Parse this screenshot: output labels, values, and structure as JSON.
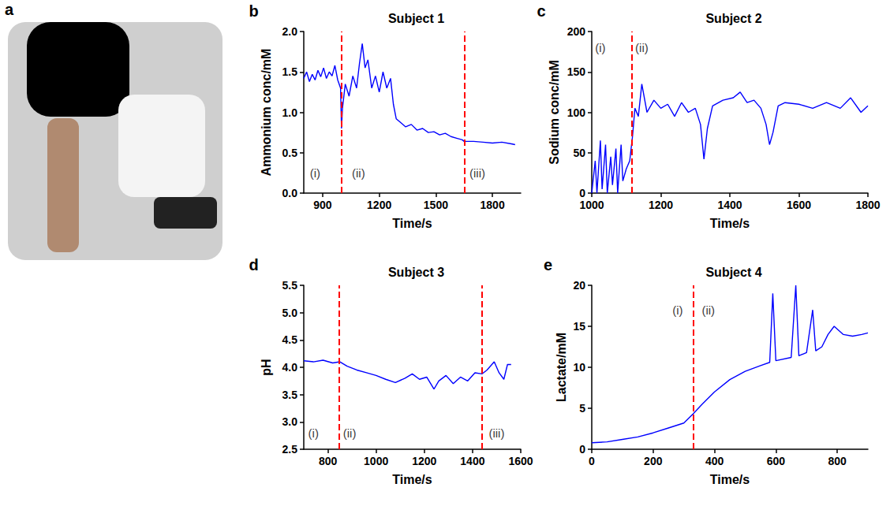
{
  "photo": {
    "panel": "a"
  },
  "chart_data": [
    {
      "type": "line",
      "panel": "b",
      "title": "Subject 1",
      "x_label": "Time/s",
      "y_label": "Ammonium conc/mM",
      "xlim": [
        800,
        1950
      ],
      "xticks": [
        900,
        1200,
        1500,
        1800
      ],
      "ylim": [
        0,
        2.0
      ],
      "yticks": [
        {
          "value": 0,
          "label": "0.0"
        },
        0.5,
        {
          "value": 1,
          "label": "1.0"
        },
        1.5,
        {
          "value": 2,
          "label": "2.0"
        }
      ],
      "grid": false,
      "color": "#0000ff",
      "x": [
        800,
        815,
        830,
        845,
        860,
        875,
        890,
        905,
        920,
        935,
        950,
        965,
        980,
        995,
        1000,
        1005,
        1020,
        1040,
        1060,
        1080,
        1095,
        1110,
        1125,
        1140,
        1160,
        1180,
        1200,
        1220,
        1240,
        1260,
        1275,
        1290,
        1310,
        1340,
        1370,
        1400,
        1430,
        1460,
        1490,
        1520,
        1550,
        1580,
        1610,
        1640,
        1650,
        1700,
        1750,
        1800,
        1850,
        1900,
        1920
      ],
      "values": [
        1.42,
        1.5,
        1.38,
        1.47,
        1.4,
        1.52,
        1.44,
        1.55,
        1.42,
        1.5,
        1.45,
        1.58,
        1.4,
        1.3,
        0.8,
        1.05,
        1.35,
        1.2,
        1.45,
        1.3,
        1.6,
        1.85,
        1.55,
        1.65,
        1.3,
        1.45,
        1.25,
        1.5,
        1.3,
        1.42,
        1.1,
        0.92,
        0.88,
        0.82,
        0.85,
        0.78,
        0.8,
        0.75,
        0.76,
        0.72,
        0.74,
        0.7,
        0.68,
        0.66,
        0.64,
        0.64,
        0.63,
        0.62,
        0.63,
        0.61,
        0.6
      ],
      "vlines": {
        "x": [
          1000,
          1650
        ],
        "color": "#ff0000",
        "line_style": "dashed"
      },
      "annotations": [
        {
          "text": "(i)",
          "x": 860,
          "y": 0.25
        },
        {
          "text": "(ii)",
          "x": 1090,
          "y": 0.25
        },
        {
          "text": "(iii)",
          "x": 1720,
          "y": 0.25
        }
      ]
    },
    {
      "type": "line",
      "panel": "c",
      "title": "Subject 2",
      "x_label": "Time/s",
      "y_label": "Sodium conc/mM",
      "xlim": [
        1000,
        1800
      ],
      "xticks": [
        1000,
        1200,
        1400,
        1600,
        1800
      ],
      "ylim": [
        0,
        200
      ],
      "yticks": [
        0,
        50,
        100,
        150,
        200
      ],
      "grid": false,
      "color": "#0000ff",
      "x": [
        1000,
        1010,
        1015,
        1025,
        1030,
        1040,
        1045,
        1055,
        1060,
        1070,
        1075,
        1085,
        1090,
        1100,
        1110,
        1118,
        1125,
        1135,
        1145,
        1160,
        1180,
        1200,
        1220,
        1240,
        1260,
        1280,
        1300,
        1315,
        1325,
        1335,
        1350,
        1380,
        1410,
        1430,
        1450,
        1470,
        1490,
        1505,
        1515,
        1525,
        1540,
        1560,
        1600,
        1640,
        1680,
        1720,
        1750,
        1780,
        1800
      ],
      "values": [
        0,
        40,
        0,
        65,
        5,
        60,
        0,
        45,
        10,
        55,
        0,
        60,
        15,
        30,
        40,
        70,
        105,
        95,
        135,
        100,
        115,
        105,
        110,
        95,
        112,
        100,
        105,
        85,
        42,
        80,
        108,
        115,
        118,
        125,
        112,
        115,
        105,
        85,
        60,
        75,
        108,
        112,
        110,
        105,
        112,
        105,
        118,
        100,
        108
      ],
      "vlines": {
        "x": [
          1115
        ],
        "color": "#ff0000",
        "line_style": "dashed"
      },
      "annotations": [
        {
          "text": "(i)",
          "x": 1025,
          "y": 180
        },
        {
          "text": "(ii)",
          "x": 1145,
          "y": 180
        }
      ]
    },
    {
      "type": "line",
      "panel": "d",
      "title": "Subject 3",
      "x_label": "Time/s",
      "y_label": "pH",
      "xlim": [
        700,
        1600
      ],
      "xticks": [
        800,
        1000,
        1200,
        1400,
        1600
      ],
      "ylim": [
        2.5,
        5.5
      ],
      "yticks": [
        2.5,
        {
          "value": 3,
          "label": "3.0"
        },
        3.5,
        {
          "value": 4,
          "label": "4.0"
        },
        4.5,
        {
          "value": 5,
          "label": "5.0"
        },
        5.5
      ],
      "grid": false,
      "color": "#0000ff",
      "x": [
        700,
        740,
        780,
        820,
        850,
        880,
        920,
        960,
        1000,
        1040,
        1080,
        1120,
        1150,
        1180,
        1210,
        1240,
        1260,
        1290,
        1320,
        1350,
        1380,
        1410,
        1440,
        1460,
        1490,
        1510,
        1530,
        1545,
        1560
      ],
      "values": [
        4.12,
        4.1,
        4.13,
        4.08,
        4.1,
        4.02,
        3.95,
        3.9,
        3.85,
        3.78,
        3.72,
        3.8,
        3.88,
        3.78,
        3.82,
        3.6,
        3.75,
        3.85,
        3.7,
        3.82,
        3.75,
        3.9,
        3.88,
        3.95,
        4.1,
        3.9,
        3.78,
        4.05,
        4.05
      ],
      "vlines": {
        "x": [
          845,
          1440
        ],
        "color": "#ff0000",
        "line_style": "dashed"
      },
      "annotations": [
        {
          "text": "(i)",
          "x": 740,
          "y": 2.8
        },
        {
          "text": "(ii)",
          "x": 890,
          "y": 2.8
        },
        {
          "text": "(iii)",
          "x": 1500,
          "y": 2.8
        }
      ]
    },
    {
      "type": "line",
      "panel": "e",
      "title": "Subject 4",
      "x_label": "Time/s",
      "y_label": "Lactate/mM",
      "xlim": [
        0,
        900
      ],
      "xticks": [
        0,
        200,
        400,
        600,
        800
      ],
      "ylim": [
        0,
        20
      ],
      "yticks": [
        0,
        5,
        10,
        15,
        20
      ],
      "grid": false,
      "color": "#0000ff",
      "x": [
        0,
        50,
        100,
        150,
        200,
        250,
        300,
        330,
        360,
        400,
        450,
        500,
        550,
        580,
        590,
        600,
        650,
        665,
        675,
        700,
        720,
        730,
        750,
        770,
        790,
        820,
        850,
        880,
        900
      ],
      "values": [
        0.8,
        0.9,
        1.2,
        1.5,
        2,
        2.6,
        3.2,
        4.3,
        5.5,
        7,
        8.5,
        9.5,
        10.2,
        10.6,
        19,
        10.8,
        11.2,
        20,
        11.4,
        11.8,
        17,
        12,
        12.5,
        14,
        15,
        14,
        13.8,
        14,
        14.2
      ],
      "vlines": {
        "x": [
          330
        ],
        "color": "#ff0000",
        "line_style": "dashed"
      },
      "annotations": [
        {
          "text": "(i)",
          "x": 280,
          "y": 17
        },
        {
          "text": "(ii)",
          "x": 380,
          "y": 17
        }
      ]
    }
  ]
}
